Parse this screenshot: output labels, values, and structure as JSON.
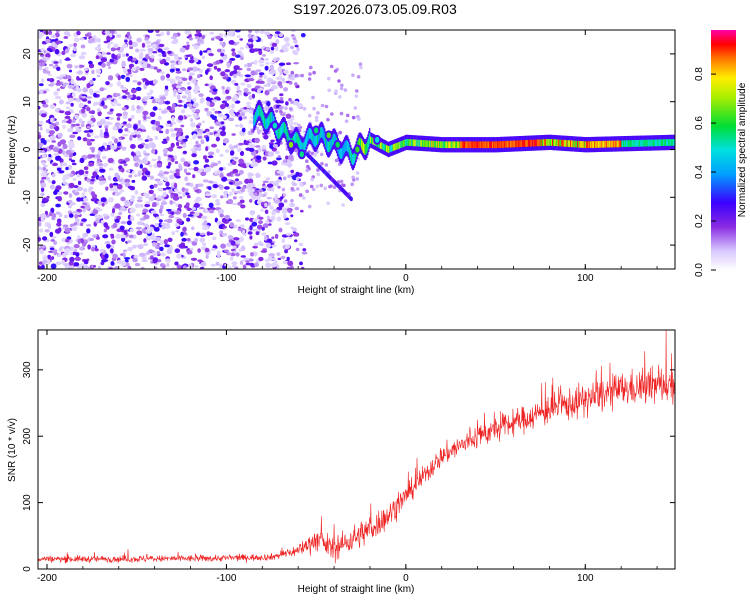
{
  "title": "S197.2026.073.05.09.R03",
  "chart_data": [
    {
      "type": "heatmap",
      "xlabel": "Height of straight line (km)",
      "ylabel": "Frequency (Hz)",
      "xlim": [
        -205,
        150
      ],
      "ylim": [
        -25,
        25
      ],
      "xticks": [
        "-200",
        "-100",
        "0",
        "100"
      ],
      "xtick_values": [
        -200,
        -100,
        0,
        100
      ],
      "yticks": [
        "-20",
        "-10",
        "0",
        "10",
        "20"
      ],
      "ytick_values": [
        -20,
        -10,
        0,
        10,
        20
      ],
      "colorbar_label": "Normalized spectral amplitude",
      "colorbar_ticks": [
        "0.0",
        "0.2",
        "0.4",
        "0.6",
        "0.8"
      ],
      "colorbar_tick_values": [
        0.0,
        0.2,
        0.4,
        0.6,
        0.8
      ],
      "colorbar_range": [
        0,
        0.98
      ],
      "noise_region_end_km": -70,
      "ridge": [
        {
          "x": -80,
          "f": 7
        },
        {
          "x": -70,
          "f": 4
        },
        {
          "x": -60,
          "f": 1
        },
        {
          "x": -50,
          "f": 3
        },
        {
          "x": -40,
          "f": 1
        },
        {
          "x": -30,
          "f": -1
        },
        {
          "x": -20,
          "f": 2
        },
        {
          "x": -10,
          "f": 0
        },
        {
          "x": 0,
          "f": 1.5
        },
        {
          "x": 20,
          "f": 1
        },
        {
          "x": 50,
          "f": 1
        },
        {
          "x": 80,
          "f": 1.5
        },
        {
          "x": 100,
          "f": 1
        },
        {
          "x": 150,
          "f": 1.5
        }
      ]
    },
    {
      "type": "line",
      "xlabel": "Height of straight line (km)",
      "ylabel": "SNR (10 * v/v)",
      "xlim": [
        -205,
        150
      ],
      "ylim": [
        0,
        360
      ],
      "xticks": [
        "-200",
        "-100",
        "0",
        "100"
      ],
      "xtick_values": [
        -200,
        -100,
        0,
        100
      ],
      "yticks": [
        "0",
        "100",
        "200",
        "300"
      ],
      "ytick_values": [
        0,
        100,
        200,
        300
      ],
      "series": [
        {
          "name": "SNR",
          "color": "#ee2222",
          "trend_x": [
            -205,
            -160,
            -110,
            -75,
            -60,
            -50,
            -40,
            -30,
            -20,
            -10,
            0,
            10,
            20,
            40,
            60,
            80,
            100,
            120,
            150
          ],
          "trend_y": [
            15,
            15,
            16,
            18,
            28,
            45,
            30,
            45,
            60,
            80,
            110,
            140,
            170,
            200,
            220,
            240,
            255,
            270,
            280
          ],
          "noise_amplitude": [
            8,
            8,
            8,
            8,
            14,
            28,
            28,
            30,
            35,
            30,
            25,
            25,
            25,
            30,
            30,
            35,
            40,
            40,
            45
          ]
        }
      ]
    }
  ]
}
